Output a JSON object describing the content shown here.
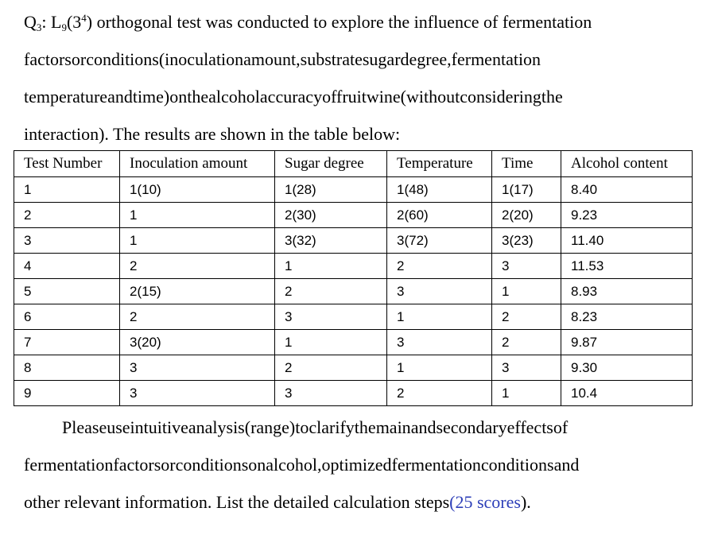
{
  "question": {
    "label": "Q",
    "label_sub": "3",
    "label_colon": ":",
    "design_L": "L",
    "design_L_sub": "9",
    "design_base": "(3",
    "design_sup": "4",
    "design_close": ")",
    "line1_words": [
      "orthogonal",
      "test",
      "was",
      "conducted",
      "to",
      "explore",
      "the",
      "influence",
      "of",
      "fermentation"
    ],
    "line2": "factors or conditions (inoculation amount, substrate sugar degree, fermentation",
    "line3": "temperature and time) on the alcohol accuracy of fruit wine (without considering the",
    "line4": "interaction). The results are shown in the table below:"
  },
  "table": {
    "headers": [
      "Test Number",
      "Inoculation amount",
      "Sugar degree",
      "Temperature",
      "Time",
      "Alcohol content"
    ],
    "rows": [
      [
        "1",
        "1(10)",
        "1(28)",
        "1(48)",
        "1(17)",
        "8.40"
      ],
      [
        "2",
        "1",
        "2(30)",
        "2(60)",
        "2(20)",
        "9.23"
      ],
      [
        "3",
        "1",
        "3(32)",
        "3(72)",
        "3(23)",
        "11.40"
      ],
      [
        "4",
        "2",
        "1",
        "2",
        "3",
        "11.53"
      ],
      [
        "5",
        "2(15)",
        "2",
        "3",
        "1",
        "8.93"
      ],
      [
        "6",
        "2",
        "3",
        "1",
        "2",
        "8.23"
      ],
      [
        "7",
        "3(20)",
        "1",
        "3",
        "2",
        "9.87"
      ],
      [
        "8",
        "3",
        "2",
        "1",
        "3",
        "9.30"
      ],
      [
        "9",
        "3",
        "3",
        "2",
        "1",
        "10.4"
      ]
    ]
  },
  "instruction": {
    "line1": "Please use intuitive analysis (range) to clarify the main and secondary effects of",
    "line2": "fermentation factors or conditions on alcohol, optimized fermentation conditions and",
    "line3_main": "other relevant information. List the detailed calculation steps",
    "line3_score": "(25 scores",
    "line3_end": ")."
  },
  "colors": {
    "text": "#000000",
    "score_accent": "#2c3eb8",
    "table_border": "#000000",
    "background": "#ffffff"
  }
}
